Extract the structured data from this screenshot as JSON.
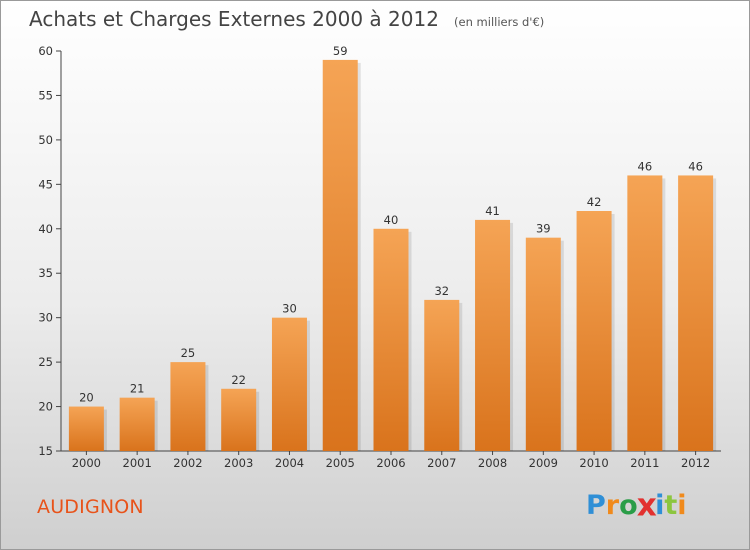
{
  "chart_data": {
    "type": "bar",
    "title": "Achats et Charges Externes 2000 à 2012",
    "subtitle": "(en milliers d'€)",
    "categories": [
      "2000",
      "2001",
      "2002",
      "2003",
      "2004",
      "2005",
      "2006",
      "2007",
      "2008",
      "2009",
      "2010",
      "2011",
      "2012"
    ],
    "values": [
      20,
      21,
      25,
      22,
      30,
      59,
      40,
      32,
      41,
      39,
      42,
      46,
      46
    ],
    "ylim": [
      15,
      60
    ],
    "yticks": [
      15,
      20,
      25,
      30,
      35,
      40,
      45,
      50,
      55,
      60
    ],
    "grid": false,
    "bar_color_top": "#f5a455",
    "bar_color_bottom": "#d9731c"
  },
  "footer": {
    "place": "AUDIGNON",
    "logo_letters": [
      {
        "ch": "P",
        "color": "#2f8fd6"
      },
      {
        "ch": "r",
        "color": "#f08a1c"
      },
      {
        "ch": "o",
        "color": "#2a9d48"
      },
      {
        "ch": "x",
        "color": "#e2312f"
      },
      {
        "ch": "i",
        "color": "#2f8fd6"
      },
      {
        "ch": "t",
        "color": "#8cc63f"
      },
      {
        "ch": "i",
        "color": "#f08a1c"
      }
    ]
  },
  "colors": {
    "place": "#e8531a",
    "axis": "#444444"
  }
}
